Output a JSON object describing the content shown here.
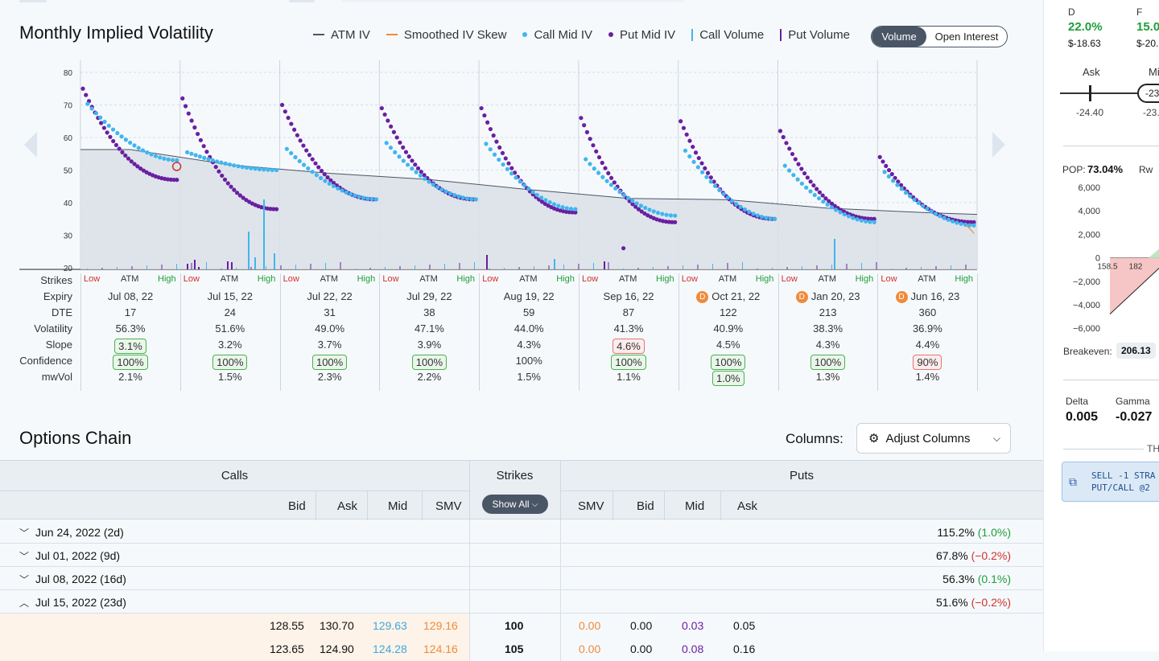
{
  "chart_title": "Monthly Implied Volatility",
  "legend": [
    {
      "label": "ATM IV",
      "marker": "line",
      "color": "#4a5566"
    },
    {
      "label": "Smoothed IV Skew",
      "marker": "line",
      "color": "#f08a3a"
    },
    {
      "label": "Call Mid IV",
      "marker": "dot",
      "color": "#3fb6ee"
    },
    {
      "label": "Put Mid IV",
      "marker": "dot",
      "color": "#6a1fa0"
    },
    {
      "label": "Call Volume",
      "marker": "bar",
      "color": "#3fb6ee"
    },
    {
      "label": "Put Volume",
      "marker": "bar",
      "color": "#6a1fa0"
    }
  ],
  "toggle": {
    "volume": "Volume",
    "open_interest": "Open Interest"
  },
  "chart_data": {
    "type": "scatter",
    "title": "Monthly Implied Volatility",
    "ylim": [
      20,
      80
    ],
    "yticks": [
      20,
      30,
      40,
      50,
      60,
      70,
      80
    ],
    "atm_iv": [
      56.3,
      51.6,
      49.0,
      47.1,
      44.0,
      41.3,
      40.9,
      38.3,
      36.9
    ],
    "skew_groups": [
      {
        "expiry": "Jul 08, 22",
        "put_start": 75,
        "put_end": 47,
        "call_start": 72,
        "call_end": 53
      },
      {
        "expiry": "Jul 15, 22",
        "put_start": 72,
        "put_end": 38,
        "call_start": 56,
        "call_end": 50
      },
      {
        "expiry": "Jul 22, 22",
        "put_start": 70,
        "put_end": 41,
        "call_start": 58,
        "call_end": 41
      },
      {
        "expiry": "Jul 29, 22",
        "put_start": 69,
        "put_end": 41,
        "call_start": 60,
        "call_end": 41
      },
      {
        "expiry": "Aug 19, 22",
        "put_start": 69,
        "put_end": 37,
        "call_start": 60,
        "call_end": 38
      },
      {
        "expiry": "Sep 16, 22",
        "put_start": 66,
        "put_end": 34,
        "call_start": 55,
        "call_end": 36
      },
      {
        "expiry": "Oct 21, 22",
        "put_start": 65,
        "put_end": 35,
        "call_start": 58,
        "call_end": 35
      },
      {
        "expiry": "Jan 20, 23",
        "put_start": 62,
        "put_end": 35,
        "call_start": 53,
        "call_end": 34
      },
      {
        "expiry": "Jun 16, 23",
        "put_start": 54,
        "put_end": 34,
        "call_start": 51,
        "call_end": 33
      }
    ],
    "outlier_put_points": [
      {
        "group": 5,
        "iv": 26
      }
    ]
  },
  "table": {
    "row_labels": [
      "Strikes",
      "Expiry",
      "DTE",
      "Volatility",
      "Slope",
      "Confidence",
      "mwVol"
    ],
    "strike_low": "Low",
    "strike_atm": "ATM",
    "strike_high": "High",
    "expiries": [
      {
        "expiry": "Jul 08, 22",
        "dividend": false,
        "dte": "17",
        "vol": "56.3%",
        "slope": "3.1%",
        "slope_badge": "g",
        "conf": "100%",
        "conf_badge": "g",
        "mw": "2.1%",
        "mw_badge": ""
      },
      {
        "expiry": "Jul 15, 22",
        "dividend": false,
        "dte": "24",
        "vol": "51.6%",
        "slope": "3.2%",
        "slope_badge": "",
        "conf": "100%",
        "conf_badge": "g",
        "mw": "1.5%",
        "mw_badge": ""
      },
      {
        "expiry": "Jul 22, 22",
        "dividend": false,
        "dte": "31",
        "vol": "49.0%",
        "slope": "3.7%",
        "slope_badge": "",
        "conf": "100%",
        "conf_badge": "g",
        "mw": "2.3%",
        "mw_badge": ""
      },
      {
        "expiry": "Jul 29, 22",
        "dividend": false,
        "dte": "38",
        "vol": "47.1%",
        "slope": "3.9%",
        "slope_badge": "",
        "conf": "100%",
        "conf_badge": "g",
        "mw": "2.2%",
        "mw_badge": ""
      },
      {
        "expiry": "Aug 19, 22",
        "dividend": false,
        "dte": "59",
        "vol": "44.0%",
        "slope": "4.3%",
        "slope_badge": "",
        "conf": "100%",
        "conf_badge": "",
        "mw": "1.5%",
        "mw_badge": ""
      },
      {
        "expiry": "Sep 16, 22",
        "dividend": false,
        "dte": "87",
        "vol": "41.3%",
        "slope": "4.6%",
        "slope_badge": "r",
        "conf": "100%",
        "conf_badge": "g",
        "mw": "1.1%",
        "mw_badge": ""
      },
      {
        "expiry": "Oct 21, 22",
        "dividend": true,
        "dte": "122",
        "vol": "40.9%",
        "slope": "4.5%",
        "slope_badge": "",
        "conf": "100%",
        "conf_badge": "g",
        "mw": "1.0%",
        "mw_badge": "g"
      },
      {
        "expiry": "Jan 20, 23",
        "dividend": true,
        "dte": "213",
        "vol": "38.3%",
        "slope": "4.3%",
        "slope_badge": "",
        "conf": "100%",
        "conf_badge": "g",
        "mw": "1.3%",
        "mw_badge": ""
      },
      {
        "expiry": "Jun 16, 23",
        "dividend": true,
        "dte": "360",
        "vol": "36.9%",
        "slope": "4.4%",
        "slope_badge": "",
        "conf": "90%",
        "conf_badge": "r",
        "mw": "1.4%",
        "mw_badge": ""
      }
    ],
    "dividend_icon": "D"
  },
  "options_chain": {
    "title": "Options Chain",
    "columns_label": "Columns:",
    "adjust_columns": "Adjust Columns",
    "group_calls": "Calls",
    "group_strikes": "Strikes",
    "group_puts": "Puts",
    "call_cols": [
      "Bid",
      "Ask",
      "Mid",
      "SMV"
    ],
    "put_cols": [
      "SMV",
      "Bid",
      "Mid",
      "Ask"
    ],
    "show_all": "Show All",
    "expirations": [
      {
        "label": "Jun 24, 2022 (2d)",
        "iv": "115.2%",
        "chg": "(1.0%)",
        "chg_color": "#1e9e3a",
        "expanded": false
      },
      {
        "label": "Jul 01, 2022 (9d)",
        "iv": "67.8%",
        "chg": "(−0.2%)",
        "chg_color": "#d0312d",
        "expanded": false
      },
      {
        "label": "Jul 08, 2022 (16d)",
        "iv": "56.3%",
        "chg": "(0.1%)",
        "chg_color": "#1e9e3a",
        "expanded": false
      },
      {
        "label": "Jul 15, 2022 (23d)",
        "iv": "51.6%",
        "chg": "(−0.2%)",
        "chg_color": "#d0312d",
        "expanded": true
      }
    ],
    "rows": [
      {
        "c_bid": "128.55",
        "c_ask": "130.70",
        "c_mid": "129.63",
        "c_smv": "129.16",
        "strike": "100",
        "p_smv": "0.00",
        "p_bid": "0.00",
        "p_mid": "0.03",
        "p_ask": "0.05"
      },
      {
        "c_bid": "123.65",
        "c_ask": "124.90",
        "c_mid": "124.28",
        "c_smv": "124.16",
        "strike": "105",
        "p_smv": "0.00",
        "p_bid": "0.00",
        "p_mid": "0.08",
        "p_ask": "0.16"
      }
    ]
  },
  "side_panel": {
    "col1_letter": "D",
    "col1_pct": "22.0%",
    "col1_val": "$-18.63",
    "col2_letter": "F",
    "col2_pct": "15.0",
    "col2_val": "$-20.",
    "ask_label": "Ask",
    "mid_label": "Mi",
    "ask_value": "-24.40",
    "mid_value": "-23.",
    "mid_pill": "-23.",
    "pop_label": "POP:",
    "pop_value": "73.04%",
    "rw_label": "Rw",
    "pl_yticks": [
      "6,000",
      "4,000",
      "2,000",
      "0",
      "−2,000",
      "−4,000",
      "−6,000"
    ],
    "pl_xticks": [
      "158.5",
      "182"
    ],
    "breakeven_label": "Breakeven:",
    "breakeven_value": "206.13",
    "delta_label": "Delta",
    "delta_value": "0.005",
    "gamma_label": "Gamma",
    "gamma_value": "-0.027",
    "th_label": "TH",
    "order_line1": "SELL -1 STRA",
    "order_line2": "PUT/CALL @2"
  }
}
